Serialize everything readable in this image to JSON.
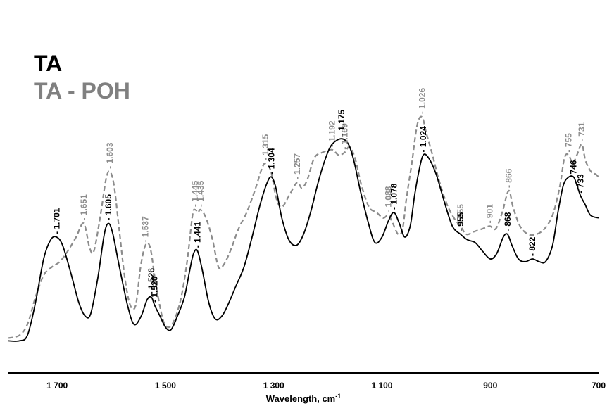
{
  "chart_data": {
    "type": "line",
    "xlabel": "Wavelength, cm",
    "xlabel_sup": "-1",
    "xlim": [
      1790,
      700
    ],
    "x_reversed": true,
    "x_ticks": [
      1700,
      1500,
      1300,
      1100,
      900,
      700
    ],
    "x_tick_labels": [
      "1 700",
      "1 500",
      "1 300",
      "1 100",
      "900",
      "700"
    ],
    "y_axis_visible": false,
    "ylim": [
      0,
      1
    ],
    "grid": false,
    "legend_position": "top-left",
    "series": [
      {
        "name": "TA",
        "color": "#000000",
        "style": "solid",
        "points": [
          [
            1790,
            0.03
          ],
          [
            1770,
            0.03
          ],
          [
            1755,
            0.05
          ],
          [
            1740,
            0.17
          ],
          [
            1725,
            0.33
          ],
          [
            1712,
            0.4
          ],
          [
            1701,
            0.41
          ],
          [
            1690,
            0.38
          ],
          [
            1675,
            0.28
          ],
          [
            1660,
            0.17
          ],
          [
            1648,
            0.12
          ],
          [
            1638,
            0.13
          ],
          [
            1625,
            0.26
          ],
          [
            1613,
            0.42
          ],
          [
            1605,
            0.46
          ],
          [
            1597,
            0.42
          ],
          [
            1585,
            0.3
          ],
          [
            1570,
            0.16
          ],
          [
            1558,
            0.09
          ],
          [
            1545,
            0.12
          ],
          [
            1534,
            0.18
          ],
          [
            1526,
            0.19
          ],
          [
            1520,
            0.16
          ],
          [
            1510,
            0.12
          ],
          [
            1500,
            0.08
          ],
          [
            1490,
            0.07
          ],
          [
            1478,
            0.12
          ],
          [
            1465,
            0.19
          ],
          [
            1455,
            0.29
          ],
          [
            1448,
            0.35
          ],
          [
            1441,
            0.36
          ],
          [
            1432,
            0.29
          ],
          [
            1420,
            0.17
          ],
          [
            1408,
            0.11
          ],
          [
            1396,
            0.12
          ],
          [
            1385,
            0.16
          ],
          [
            1370,
            0.23
          ],
          [
            1355,
            0.3
          ],
          [
            1340,
            0.41
          ],
          [
            1325,
            0.53
          ],
          [
            1312,
            0.61
          ],
          [
            1304,
            0.63
          ],
          [
            1296,
            0.59
          ],
          [
            1285,
            0.48
          ],
          [
            1272,
            0.4
          ],
          [
            1258,
            0.38
          ],
          [
            1245,
            0.42
          ],
          [
            1232,
            0.5
          ],
          [
            1218,
            0.61
          ],
          [
            1204,
            0.7
          ],
          [
            1192,
            0.75
          ],
          [
            1175,
            0.77
          ],
          [
            1162,
            0.75
          ],
          [
            1152,
            0.69
          ],
          [
            1140,
            0.58
          ],
          [
            1125,
            0.46
          ],
          [
            1113,
            0.39
          ],
          [
            1100,
            0.41
          ],
          [
            1088,
            0.47
          ],
          [
            1078,
            0.5
          ],
          [
            1068,
            0.46
          ],
          [
            1058,
            0.41
          ],
          [
            1048,
            0.45
          ],
          [
            1040,
            0.56
          ],
          [
            1032,
            0.65
          ],
          [
            1024,
            0.71
          ],
          [
            1014,
            0.7
          ],
          [
            1000,
            0.64
          ],
          [
            985,
            0.54
          ],
          [
            970,
            0.45
          ],
          [
            955,
            0.42
          ],
          [
            942,
            0.4
          ],
          [
            928,
            0.39
          ],
          [
            915,
            0.36
          ],
          [
            900,
            0.33
          ],
          [
            888,
            0.35
          ],
          [
            876,
            0.41
          ],
          [
            868,
            0.42
          ],
          [
            860,
            0.38
          ],
          [
            848,
            0.33
          ],
          [
            835,
            0.32
          ],
          [
            822,
            0.33
          ],
          [
            810,
            0.32
          ],
          [
            798,
            0.32
          ],
          [
            785,
            0.38
          ],
          [
            775,
            0.5
          ],
          [
            765,
            0.6
          ],
          [
            755,
            0.63
          ],
          [
            746,
            0.63
          ],
          [
            740,
            0.6
          ],
          [
            733,
            0.56
          ],
          [
            725,
            0.53
          ],
          [
            715,
            0.49
          ],
          [
            700,
            0.48
          ]
        ]
      },
      {
        "name": "TA - POH",
        "color": "#8c8c8c",
        "style": "dashed",
        "points": [
          [
            1790,
            0.04
          ],
          [
            1770,
            0.05
          ],
          [
            1755,
            0.09
          ],
          [
            1740,
            0.19
          ],
          [
            1725,
            0.27
          ],
          [
            1710,
            0.3
          ],
          [
            1695,
            0.32
          ],
          [
            1680,
            0.36
          ],
          [
            1665,
            0.41
          ],
          [
            1651,
            0.46
          ],
          [
            1640,
            0.37
          ],
          [
            1632,
            0.36
          ],
          [
            1620,
            0.49
          ],
          [
            1610,
            0.62
          ],
          [
            1603,
            0.65
          ],
          [
            1595,
            0.6
          ],
          [
            1585,
            0.43
          ],
          [
            1575,
            0.26
          ],
          [
            1565,
            0.16
          ],
          [
            1555,
            0.16
          ],
          [
            1546,
            0.3
          ],
          [
            1537,
            0.38
          ],
          [
            1528,
            0.37
          ],
          [
            1518,
            0.24
          ],
          [
            1505,
            0.11
          ],
          [
            1495,
            0.08
          ],
          [
            1485,
            0.1
          ],
          [
            1472,
            0.18
          ],
          [
            1460,
            0.32
          ],
          [
            1450,
            0.49
          ],
          [
            1445,
            0.51
          ],
          [
            1440,
            0.5
          ],
          [
            1435,
            0.51
          ],
          [
            1425,
            0.48
          ],
          [
            1413,
            0.4
          ],
          [
            1402,
            0.3
          ],
          [
            1392,
            0.31
          ],
          [
            1380,
            0.36
          ],
          [
            1365,
            0.44
          ],
          [
            1350,
            0.5
          ],
          [
            1335,
            0.58
          ],
          [
            1322,
            0.66
          ],
          [
            1315,
            0.68
          ],
          [
            1305,
            0.65
          ],
          [
            1295,
            0.55
          ],
          [
            1285,
            0.52
          ],
          [
            1272,
            0.56
          ],
          [
            1257,
            0.61
          ],
          [
            1248,
            0.59
          ],
          [
            1238,
            0.62
          ],
          [
            1225,
            0.7
          ],
          [
            1210,
            0.72
          ],
          [
            1192,
            0.73
          ],
          [
            1180,
            0.71
          ],
          [
            1169,
            0.72
          ],
          [
            1160,
            0.74
          ],
          [
            1150,
            0.7
          ],
          [
            1138,
            0.6
          ],
          [
            1124,
            0.52
          ],
          [
            1110,
            0.5
          ],
          [
            1098,
            0.48
          ],
          [
            1088,
            0.49
          ],
          [
            1080,
            0.46
          ],
          [
            1070,
            0.42
          ],
          [
            1062,
            0.44
          ],
          [
            1055,
            0.55
          ],
          [
            1045,
            0.68
          ],
          [
            1035,
            0.82
          ],
          [
            1026,
            0.85
          ],
          [
            1018,
            0.79
          ],
          [
            1008,
            0.72
          ],
          [
            995,
            0.62
          ],
          [
            980,
            0.53
          ],
          [
            967,
            0.48
          ],
          [
            955,
            0.45
          ],
          [
            944,
            0.42
          ],
          [
            930,
            0.43
          ],
          [
            915,
            0.44
          ],
          [
            901,
            0.45
          ],
          [
            890,
            0.44
          ],
          [
            878,
            0.5
          ],
          [
            866,
            0.58
          ],
          [
            858,
            0.52
          ],
          [
            845,
            0.45
          ],
          [
            830,
            0.42
          ],
          [
            815,
            0.42
          ],
          [
            800,
            0.44
          ],
          [
            785,
            0.49
          ],
          [
            772,
            0.59
          ],
          [
            763,
            0.7
          ],
          [
            755,
            0.71
          ],
          [
            748,
            0.68
          ],
          [
            740,
            0.71
          ],
          [
            731,
            0.75
          ],
          [
            724,
            0.69
          ],
          [
            714,
            0.65
          ],
          [
            705,
            0.64
          ],
          [
            700,
            0.63
          ]
        ]
      }
    ],
    "ta_peak_labels": [
      {
        "x": 1701,
        "y": 0.41,
        "text": "- 1.701"
      },
      {
        "x": 1605,
        "y": 0.46,
        "text": "- 1.605"
      },
      {
        "x": 1526,
        "y": 0.19,
        "text": "- 1.526"
      },
      {
        "x": 1520,
        "y": 0.16,
        "text": "- 1.520"
      },
      {
        "x": 1441,
        "y": 0.36,
        "text": "- 1.441"
      },
      {
        "x": 1304,
        "y": 0.63,
        "text": "- 1.304"
      },
      {
        "x": 1175,
        "y": 0.77,
        "text": "- 1.175"
      },
      {
        "x": 1078,
        "y": 0.5,
        "text": "- 1.078"
      },
      {
        "x": 1024,
        "y": 0.71,
        "text": "- 1.024"
      },
      {
        "x": 955,
        "y": 0.42,
        "text": "- 955"
      },
      {
        "x": 868,
        "y": 0.42,
        "text": "- 868"
      },
      {
        "x": 822,
        "y": 0.33,
        "text": "- 822"
      },
      {
        "x": 746,
        "y": 0.63,
        "text": "746"
      },
      {
        "x": 733,
        "y": 0.56,
        "text": "- 733"
      }
    ],
    "tapoh_peak_labels": [
      {
        "x": 1651,
        "y": 0.46,
        "text": "- 1.651"
      },
      {
        "x": 1603,
        "y": 0.65,
        "text": "- 1.603"
      },
      {
        "x": 1537,
        "y": 0.38,
        "text": "- 1.537"
      },
      {
        "x": 1445,
        "y": 0.51,
        "text": "- 1.445"
      },
      {
        "x": 1435,
        "y": 0.51,
        "text": "- 1.435"
      },
      {
        "x": 1315,
        "y": 0.68,
        "text": "- 1.315"
      },
      {
        "x": 1257,
        "y": 0.61,
        "text": "- 1.257"
      },
      {
        "x": 1192,
        "y": 0.73,
        "text": "- 1.192"
      },
      {
        "x": 1169,
        "y": 0.72,
        "text": "- 1.169"
      },
      {
        "x": 1088,
        "y": 0.49,
        "text": "- 1.088"
      },
      {
        "x": 1026,
        "y": 0.85,
        "text": "- 1.026"
      },
      {
        "x": 955,
        "y": 0.45,
        "text": "- 955"
      },
      {
        "x": 901,
        "y": 0.45,
        "text": "- 901"
      },
      {
        "x": 866,
        "y": 0.58,
        "text": "- 866"
      },
      {
        "x": 755,
        "y": 0.71,
        "text": "- 755"
      },
      {
        "x": 731,
        "y": 0.75,
        "text": "- 731"
      }
    ]
  },
  "legend": {
    "ta_label": "TA",
    "tapoh_label": "TA - POH",
    "ta_color": "#000000",
    "tapoh_color": "#808080"
  }
}
